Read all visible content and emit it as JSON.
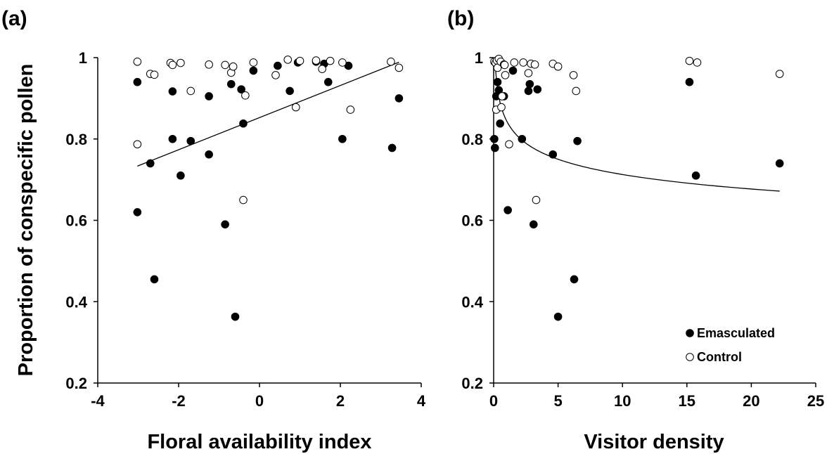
{
  "chart_data": [
    {
      "panel_label": "(a)",
      "type": "scatter",
      "xlabel": "Floral availability index",
      "ylabel": "Proportion of conspecific pollen",
      "xlim": [
        -4,
        4
      ],
      "ylim": [
        0.2,
        1
      ],
      "xticks": [
        -4,
        -2,
        0,
        2,
        4
      ],
      "yticks": [
        0.2,
        0.4,
        0.6,
        0.8,
        1
      ],
      "ytick_labels": [
        "0.2",
        "0.4",
        "0.6",
        "0.8",
        "1"
      ],
      "grid": false,
      "series": [
        {
          "marker": "filled",
          "points": [
            [
              -3.02,
              0.94
            ],
            [
              -3.02,
              0.62
            ],
            [
              -2.7,
              0.74
            ],
            [
              -2.6,
              0.455
            ],
            [
              -2.15,
              0.917
            ],
            [
              -2.15,
              0.8
            ],
            [
              -1.95,
              0.71
            ],
            [
              -1.7,
              0.795
            ],
            [
              -1.25,
              0.905
            ],
            [
              -1.25,
              0.762
            ],
            [
              -0.85,
              0.59
            ],
            [
              -0.7,
              0.935
            ],
            [
              -0.6,
              0.363
            ],
            [
              -0.45,
              0.922
            ],
            [
              -0.4,
              0.838
            ],
            [
              -0.15,
              0.968
            ],
            [
              0.45,
              0.98
            ],
            [
              0.75,
              0.918
            ],
            [
              0.95,
              0.988
            ],
            [
              1.4,
              0.99
            ],
            [
              1.6,
              0.985
            ],
            [
              1.7,
              0.94
            ],
            [
              2.05,
              0.8
            ],
            [
              2.2,
              0.98
            ],
            [
              3.28,
              0.778
            ],
            [
              3.45,
              0.9
            ]
          ]
        },
        {
          "marker": "open",
          "points": [
            [
              -3.02,
              0.99
            ],
            [
              -3.02,
              0.787
            ],
            [
              -2.7,
              0.96
            ],
            [
              -2.6,
              0.958
            ],
            [
              -2.2,
              0.987
            ],
            [
              -2.15,
              0.982
            ],
            [
              -1.95,
              0.987
            ],
            [
              -1.7,
              0.918
            ],
            [
              -1.25,
              0.983
            ],
            [
              -0.85,
              0.982
            ],
            [
              -0.7,
              0.963
            ],
            [
              -0.65,
              0.978
            ],
            [
              -0.4,
              0.65
            ],
            [
              -0.35,
              0.907
            ],
            [
              -0.15,
              0.988
            ],
            [
              0.4,
              0.957
            ],
            [
              0.7,
              0.995
            ],
            [
              0.9,
              0.878
            ],
            [
              1.0,
              0.992
            ],
            [
              1.4,
              0.993
            ],
            [
              1.55,
              0.972
            ],
            [
              1.75,
              0.992
            ],
            [
              2.05,
              0.988
            ],
            [
              2.25,
              0.872
            ],
            [
              3.25,
              0.99
            ],
            [
              3.45,
              0.975
            ]
          ]
        }
      ],
      "fit": {
        "kind": "linear",
        "x_range": [
          -3.02,
          3.45
        ],
        "intercept": 0.8525,
        "slope": 0.0395
      }
    },
    {
      "panel_label": "(b)",
      "type": "scatter",
      "xlabel": "Visitor density",
      "ylabel": "",
      "xlim": [
        0,
        25
      ],
      "ylim": [
        0.2,
        1
      ],
      "xticks": [
        0,
        5,
        10,
        15,
        20,
        25
      ],
      "yticks": [
        0.2,
        0.4,
        0.6,
        0.8,
        1
      ],
      "ytick_labels": [
        "0.2",
        "0.4",
        "0.6",
        "0.8",
        "1"
      ],
      "grid": false,
      "legend_position": "bottom-right",
      "legend": [
        {
          "marker": "filled",
          "label": "Emasculated"
        },
        {
          "marker": "open",
          "label": "Control"
        }
      ],
      "series": [
        {
          "marker": "filled",
          "points": [
            [
              0.05,
              0.8
            ],
            [
              0.1,
              0.778
            ],
            [
              0.2,
              0.905
            ],
            [
              0.3,
              0.94
            ],
            [
              0.4,
              0.92
            ],
            [
              0.5,
              0.838
            ],
            [
              0.8,
              0.905
            ],
            [
              1.1,
              0.625
            ],
            [
              1.5,
              0.968
            ],
            [
              2.2,
              0.8
            ],
            [
              2.7,
              0.918
            ],
            [
              2.8,
              0.935
            ],
            [
              3.1,
              0.59
            ],
            [
              3.4,
              0.922
            ],
            [
              4.6,
              0.762
            ],
            [
              5.0,
              0.363
            ],
            [
              6.25,
              0.455
            ],
            [
              6.5,
              0.795
            ],
            [
              15.2,
              0.94
            ],
            [
              15.7,
              0.71
            ],
            [
              22.2,
              0.74
            ]
          ]
        },
        {
          "marker": "open",
          "points": [
            [
              0.05,
              0.99
            ],
            [
              0.15,
              0.987
            ],
            [
              0.2,
              0.872
            ],
            [
              0.25,
              0.993
            ],
            [
              0.3,
              0.975
            ],
            [
              0.4,
              0.997
            ],
            [
              0.55,
              0.99
            ],
            [
              0.6,
              0.878
            ],
            [
              0.65,
              0.905
            ],
            [
              0.8,
              0.983
            ],
            [
              0.85,
              0.982
            ],
            [
              0.9,
              0.957
            ],
            [
              1.2,
              0.787
            ],
            [
              1.6,
              0.988
            ],
            [
              2.3,
              0.988
            ],
            [
              2.7,
              0.962
            ],
            [
              2.9,
              0.985
            ],
            [
              3.2,
              0.983
            ],
            [
              3.3,
              0.65
            ],
            [
              4.6,
              0.985
            ],
            [
              5.0,
              0.978
            ],
            [
              6.2,
              0.957
            ],
            [
              6.4,
              0.918
            ],
            [
              15.2,
              0.992
            ],
            [
              15.8,
              0.988
            ],
            [
              22.2,
              0.96
            ]
          ]
        }
      ],
      "fit": {
        "kind": "power",
        "x_range": [
          0.02,
          22.2
        ],
        "a": 0.845,
        "b": -0.074
      }
    }
  ]
}
